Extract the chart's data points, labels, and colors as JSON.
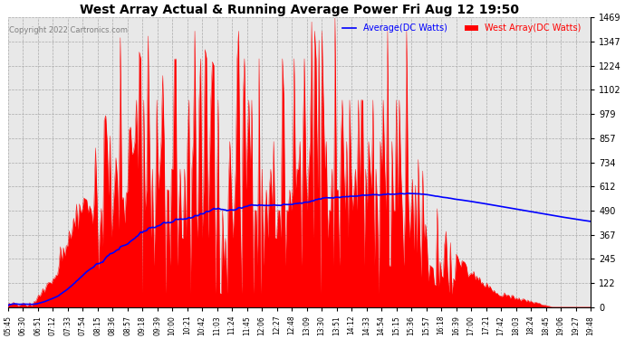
{
  "title": "West Array Actual & Running Average Power Fri Aug 12 19:50",
  "copyright": "Copyright 2022 Cartronics.com",
  "legend_avg": "Average(DC Watts)",
  "legend_west": "West Array(DC Watts)",
  "legend_avg_color": "blue",
  "legend_west_color": "red",
  "yticks": [
    0.0,
    122.4,
    244.8,
    367.3,
    489.7,
    612.1,
    734.5,
    857.0,
    979.4,
    1101.8,
    1224.2,
    1346.7,
    1469.1
  ],
  "ymax": 1469.1,
  "background_color": "#ffffff",
  "plot_bg_color": "#e8e8e8",
  "grid_color": "#aaaaaa",
  "x_labels": [
    "05:45",
    "06:30",
    "06:51",
    "07:12",
    "07:33",
    "07:54",
    "08:15",
    "08:36",
    "08:57",
    "09:18",
    "09:39",
    "10:00",
    "10:21",
    "10:42",
    "11:03",
    "11:24",
    "11:45",
    "12:06",
    "12:27",
    "12:48",
    "13:09",
    "13:30",
    "13:51",
    "14:12",
    "14:33",
    "14:54",
    "15:15",
    "15:36",
    "15:57",
    "16:18",
    "16:39",
    "17:00",
    "17:21",
    "17:42",
    "18:03",
    "18:24",
    "18:45",
    "19:06",
    "19:27",
    "19:48"
  ]
}
